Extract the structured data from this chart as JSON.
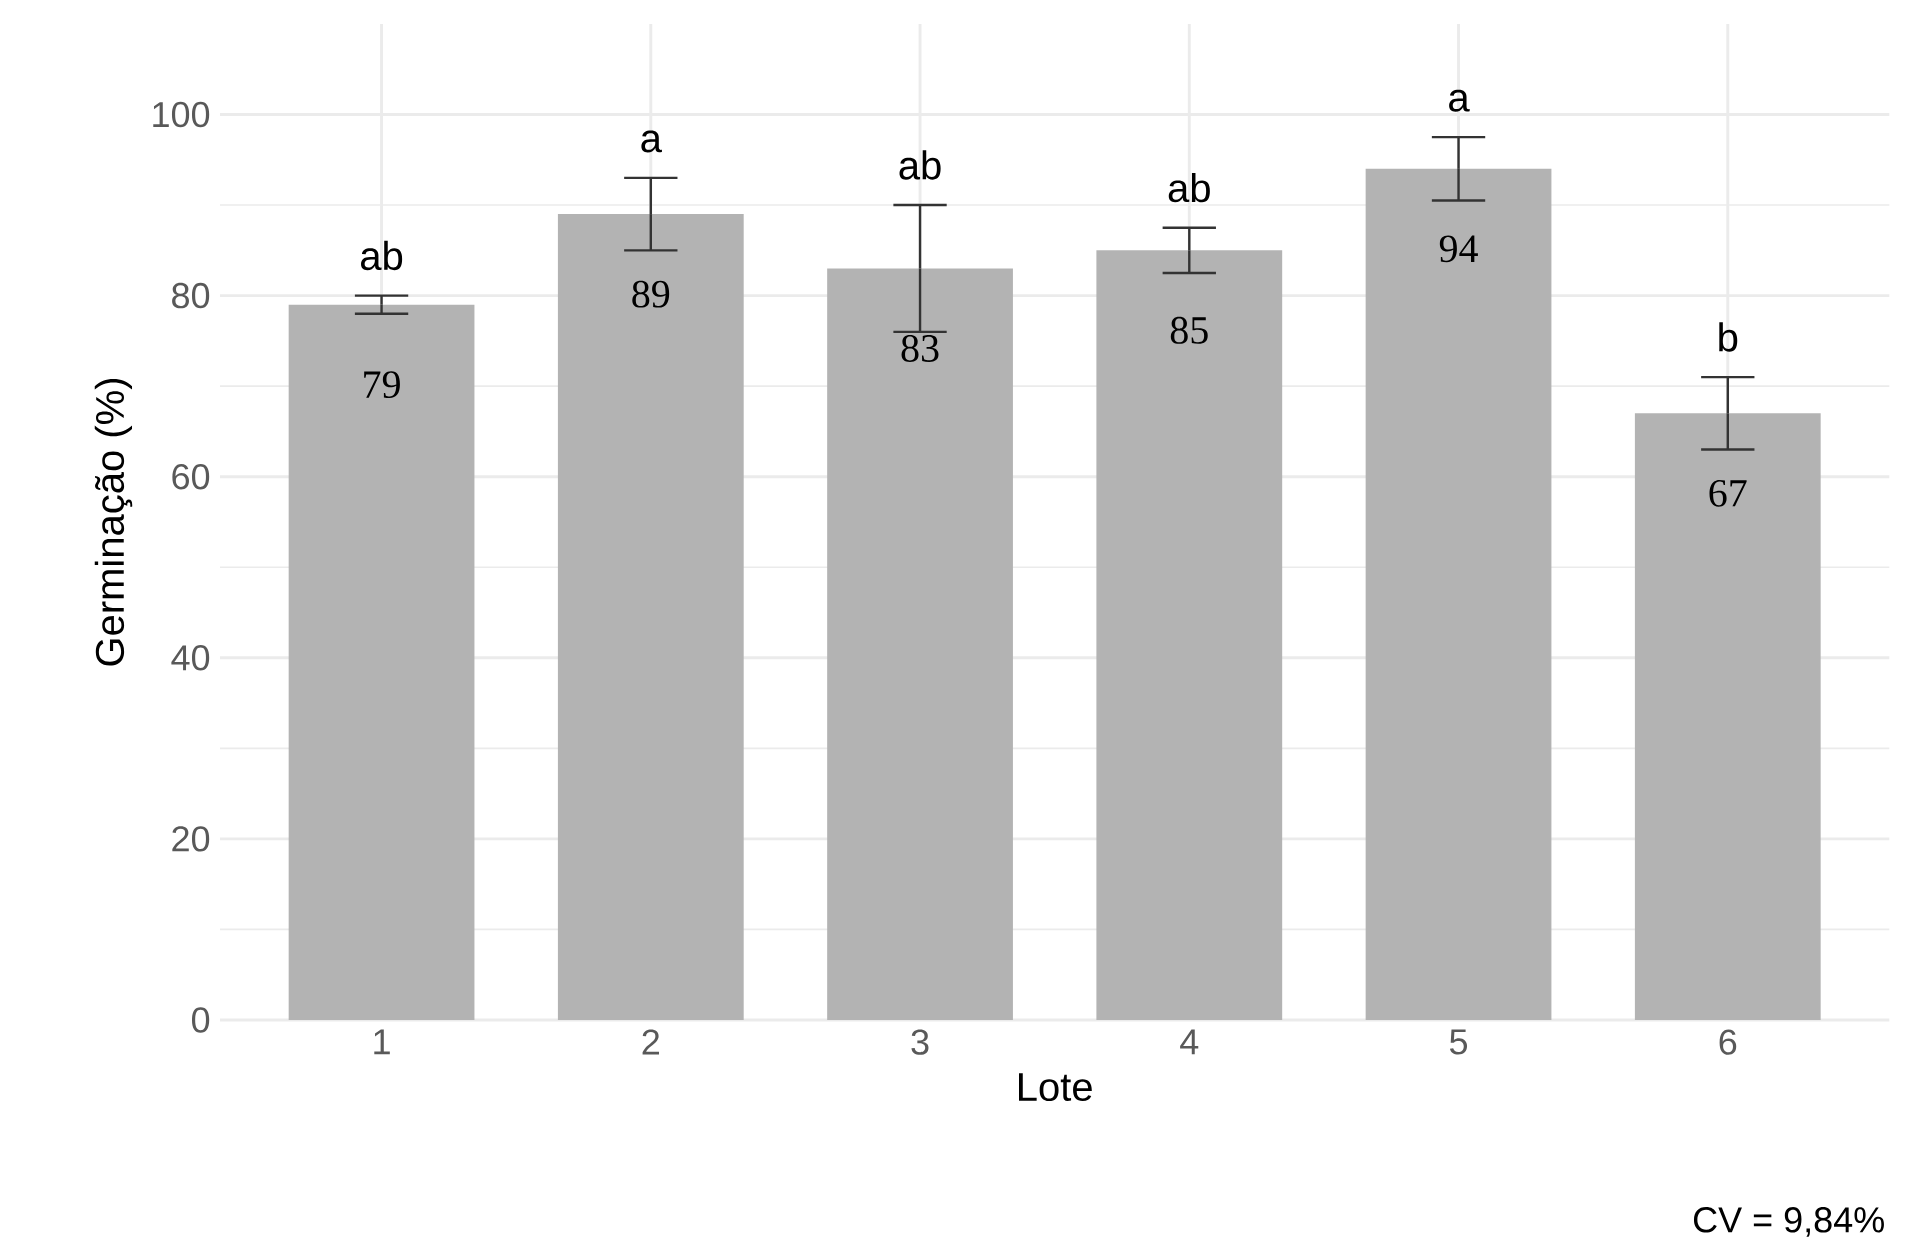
{
  "chart_data": {
    "type": "bar",
    "xlabel": "Lote",
    "ylabel": "Germinação (%)",
    "categories": [
      "1",
      "2",
      "3",
      "4",
      "5",
      "6"
    ],
    "values": [
      79,
      89,
      83,
      85,
      94,
      67
    ],
    "errors": [
      1,
      4,
      7,
      2.5,
      3.5,
      4
    ],
    "color": "#b3b3b3",
    "ylim": [
      0,
      110
    ],
    "yticks": [
      0,
      20,
      40,
      60,
      80,
      100
    ],
    "grid": true,
    "data_labels": true,
    "annotations": [
      "ab",
      "a",
      "ab",
      "ab",
      "a",
      "b",
      "CV = 9,84%"
    ]
  }
}
